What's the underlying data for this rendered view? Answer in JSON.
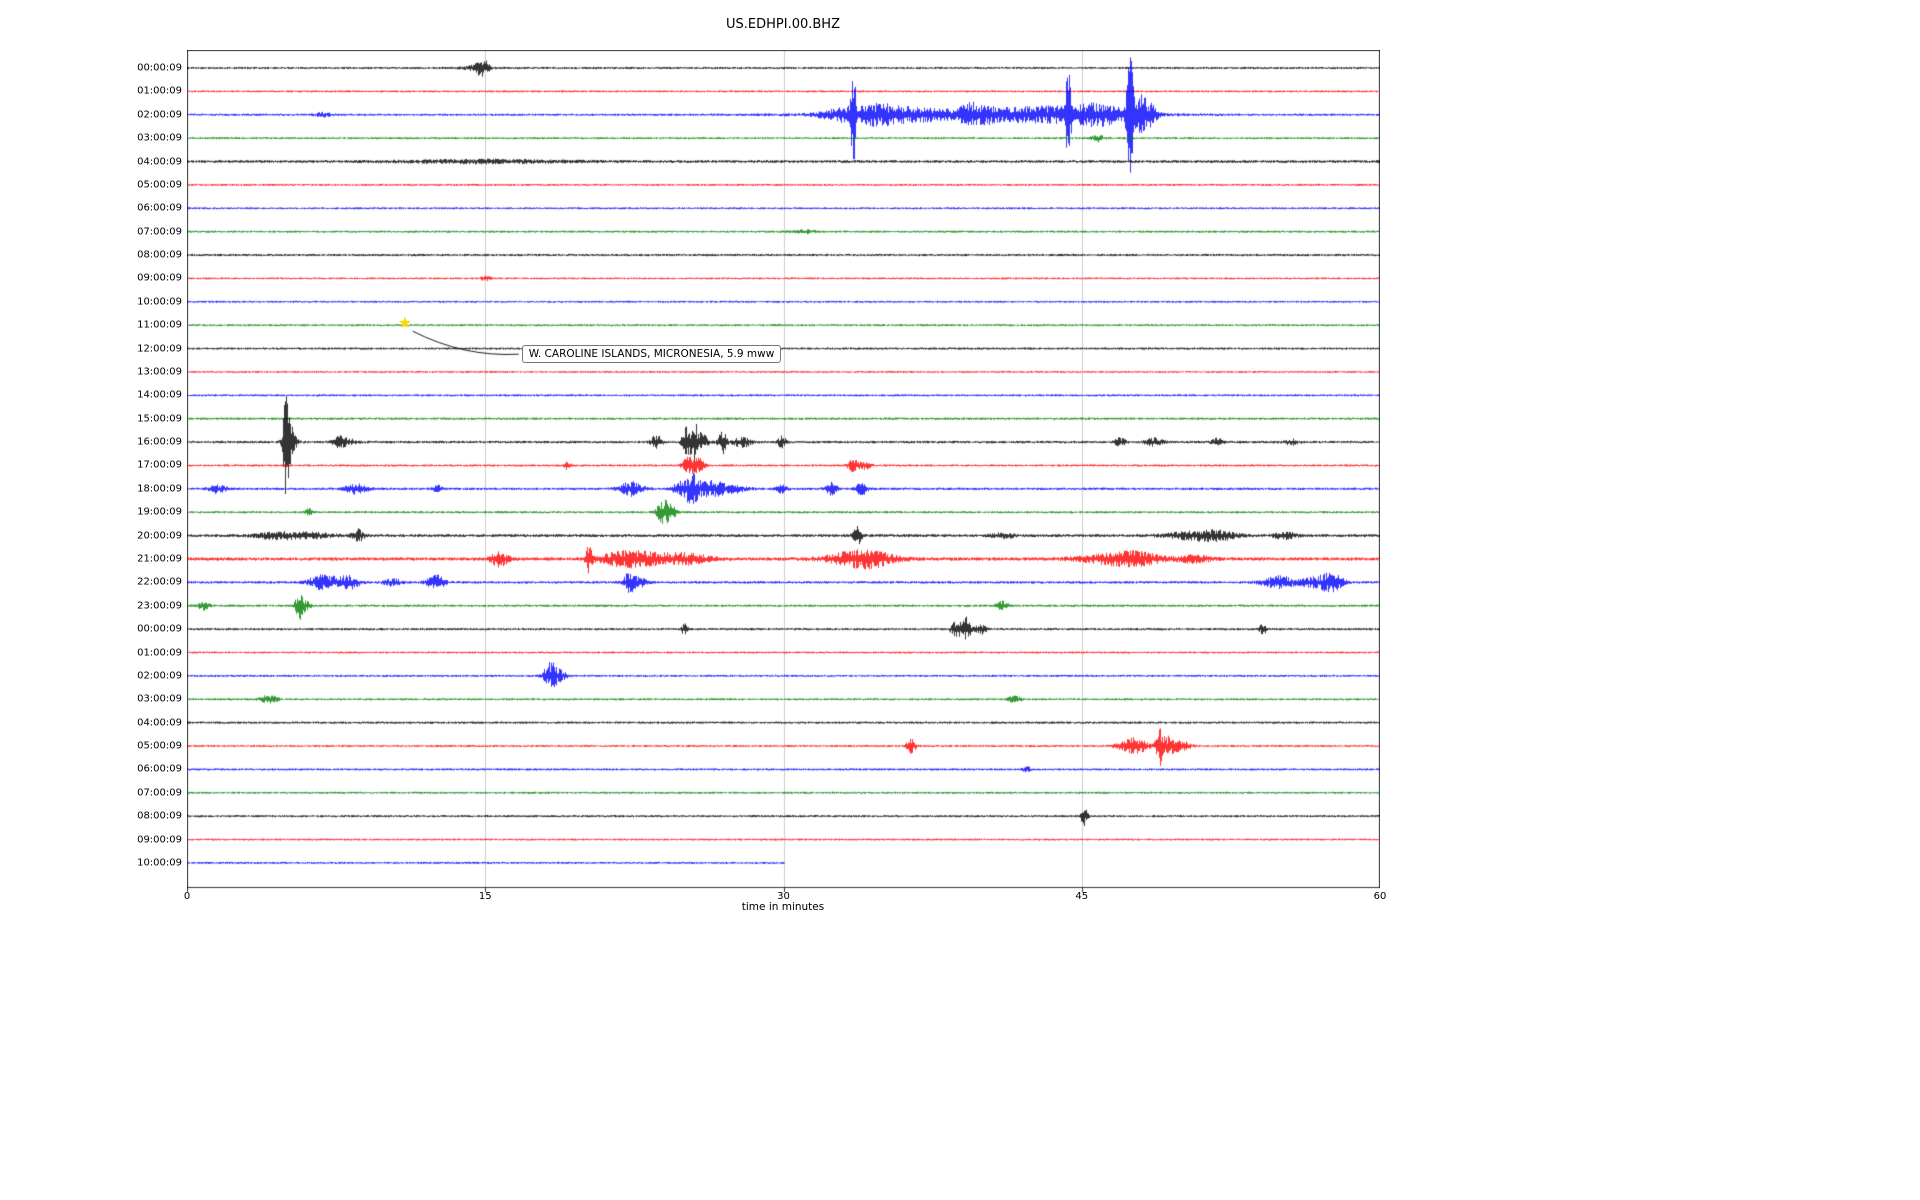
{
  "title": "US.EDHPI.00.BHZ",
  "xlabel": "time in minutes",
  "colors": {
    "black": "#000000",
    "red": "#ff0000",
    "blue": "#0000ff",
    "green": "#008000",
    "grid": "#cccccc",
    "frame": "#000000",
    "star": "#ffd700"
  },
  "annotation": {
    "text": "W. CAROLINE ISLANDS, MICRONESIA, 5.9 mww",
    "row_index": 11,
    "minute": 11
  },
  "chart_data": {
    "type": "line",
    "subtype": "helicorder-dayplot",
    "title": "US.EDHPI.00.BHZ",
    "xlabel": "time in minutes",
    "xlim": [
      0,
      60
    ],
    "x_ticks": [
      0,
      15,
      30,
      45,
      60
    ],
    "grid": "vertical-interior",
    "color_cycle": [
      "black",
      "red",
      "blue",
      "green"
    ],
    "rows": [
      {
        "label": "00:00:09",
        "color": "black",
        "base": 1.15,
        "end": 60,
        "events": [
          [
            14.5,
            2.5,
            0.4
          ],
          [
            14.75,
            6,
            0.15
          ],
          [
            15.05,
            5,
            0.12
          ]
        ]
      },
      {
        "label": "01:00:09",
        "color": "red",
        "base": 1.0,
        "end": 60,
        "events": []
      },
      {
        "label": "02:00:09",
        "color": "blue",
        "base": 1.15,
        "end": 60,
        "events": [
          [
            6.8,
            2,
            0.3
          ],
          [
            33.0,
            6,
            0.8
          ],
          [
            33.5,
            42,
            0.1
          ],
          [
            34.6,
            7,
            0.5
          ],
          [
            35.5,
            4,
            0.8
          ],
          [
            37,
            3.5,
            1.2
          ],
          [
            39.5,
            7,
            0.5
          ],
          [
            40,
            3,
            5
          ],
          [
            40.5,
            4,
            0.8
          ],
          [
            42,
            4,
            0.8
          ],
          [
            43.5,
            5,
            0.6
          ],
          [
            44.3,
            36,
            0.1
          ],
          [
            45,
            6,
            0.8
          ],
          [
            46.2,
            7,
            0.8
          ],
          [
            47.4,
            55,
            0.12
          ],
          [
            47.9,
            16,
            0.3
          ],
          [
            48.4,
            8,
            0.3
          ]
        ]
      },
      {
        "label": "03:00:09",
        "color": "green",
        "base": 1.1,
        "end": 60,
        "events": [
          [
            45.8,
            3.5,
            0.2
          ]
        ]
      },
      {
        "label": "04:00:09",
        "color": "black",
        "base": 1.45,
        "end": 60,
        "events": [
          [
            15,
            1.5,
            3
          ]
        ]
      },
      {
        "label": "05:00:09",
        "color": "red",
        "base": 1.05,
        "end": 60,
        "events": []
      },
      {
        "label": "06:00:09",
        "color": "blue",
        "base": 1.05,
        "end": 60,
        "events": []
      },
      {
        "label": "07:00:09",
        "color": "green",
        "base": 1.1,
        "end": 60,
        "events": [
          [
            31,
            1.5,
            0.5
          ]
        ]
      },
      {
        "label": "08:00:09",
        "color": "black",
        "base": 1.2,
        "end": 60,
        "events": []
      },
      {
        "label": "09:00:09",
        "color": "red",
        "base": 1.0,
        "end": 60,
        "events": [
          [
            15,
            2.5,
            0.15
          ]
        ]
      },
      {
        "label": "10:00:09",
        "color": "blue",
        "base": 1.05,
        "end": 60,
        "events": []
      },
      {
        "label": "11:00:09",
        "color": "green",
        "base": 1.1,
        "end": 60,
        "events": []
      },
      {
        "label": "12:00:09",
        "color": "black",
        "base": 1.15,
        "end": 60,
        "events": []
      },
      {
        "label": "13:00:09",
        "color": "red",
        "base": 1.0,
        "end": 60,
        "events": []
      },
      {
        "label": "14:00:09",
        "color": "blue",
        "base": 1.1,
        "end": 60,
        "events": []
      },
      {
        "label": "15:00:09",
        "color": "green",
        "base": 1.2,
        "end": 60,
        "events": []
      },
      {
        "label": "16:00:09",
        "color": "black",
        "base": 1.3,
        "end": 60,
        "events": [
          [
            4.95,
            46,
            0.1
          ],
          [
            5.15,
            18,
            0.2
          ],
          [
            7.6,
            5,
            0.2
          ],
          [
            8.1,
            3,
            0.3
          ],
          [
            23.6,
            7,
            0.2
          ],
          [
            25.1,
            16,
            0.15
          ],
          [
            25.5,
            20,
            0.12
          ],
          [
            25.9,
            9,
            0.2
          ],
          [
            26.9,
            12,
            0.15
          ],
          [
            27.9,
            5,
            0.3
          ],
          [
            29.9,
            6,
            0.15
          ],
          [
            46.9,
            4,
            0.2
          ],
          [
            48.6,
            3.5,
            0.3
          ],
          [
            51.8,
            3.5,
            0.2
          ],
          [
            55.5,
            3,
            0.2
          ]
        ]
      },
      {
        "label": "17:00:09",
        "color": "red",
        "base": 1.1,
        "end": 60,
        "events": [
          [
            19.1,
            3.5,
            0.12
          ],
          [
            25.2,
            9,
            0.2
          ],
          [
            25.7,
            7,
            0.2
          ],
          [
            33.5,
            6,
            0.2
          ],
          [
            34.1,
            3.5,
            0.2
          ]
        ]
      },
      {
        "label": "18:00:09",
        "color": "blue",
        "base": 1.25,
        "end": 60,
        "events": [
          [
            1.5,
            4,
            0.3
          ],
          [
            8.5,
            5,
            0.4
          ],
          [
            12.6,
            3.5,
            0.2
          ],
          [
            22.3,
            7,
            0.4
          ],
          [
            24.9,
            9,
            0.3
          ],
          [
            25.4,
            11,
            0.2
          ],
          [
            26.1,
            7,
            0.5
          ],
          [
            27.2,
            5,
            0.6
          ],
          [
            29.9,
            4,
            0.2
          ],
          [
            32.4,
            6,
            0.2
          ],
          [
            33.9,
            6,
            0.2
          ]
        ]
      },
      {
        "label": "19:00:09",
        "color": "green",
        "base": 1.15,
        "end": 60,
        "events": [
          [
            6.1,
            3.5,
            0.12
          ],
          [
            23.9,
            11,
            0.2
          ],
          [
            24.3,
            7,
            0.2
          ]
        ]
      },
      {
        "label": "20:00:09",
        "color": "black",
        "base": 1.5,
        "end": 60,
        "events": [
          [
            4.5,
            3,
            0.8
          ],
          [
            6.2,
            2.5,
            0.8
          ],
          [
            8.6,
            6,
            0.2
          ],
          [
            33.7,
            9,
            0.15
          ],
          [
            41,
            2.5,
            0.4
          ],
          [
            50.7,
            4,
            1.0
          ],
          [
            52,
            3,
            0.6
          ],
          [
            55.2,
            3.5,
            0.4
          ]
        ]
      },
      {
        "label": "21:00:09",
        "color": "red",
        "base": 1.7,
        "end": 60,
        "events": [
          [
            15.7,
            7,
            0.3
          ],
          [
            20.2,
            13,
            0.12
          ],
          [
            21.8,
            5,
            0.8
          ],
          [
            23.2,
            5,
            1.2
          ],
          [
            25.2,
            4,
            0.8
          ],
          [
            33.6,
            7,
            1.0
          ],
          [
            34.8,
            4,
            0.8
          ],
          [
            46.6,
            5,
            1.2
          ],
          [
            48,
            4,
            0.8
          ],
          [
            50.6,
            3.5,
            0.6
          ]
        ]
      },
      {
        "label": "22:00:09",
        "color": "blue",
        "base": 1.3,
        "end": 60,
        "events": [
          [
            6.6,
            6,
            0.4
          ],
          [
            7.6,
            5,
            0.5
          ],
          [
            8.3,
            4,
            0.3
          ],
          [
            10.3,
            3.5,
            0.3
          ],
          [
            12.5,
            7,
            0.3
          ],
          [
            22.2,
            9,
            0.2
          ],
          [
            22.7,
            5,
            0.3
          ],
          [
            54.9,
            6,
            0.6
          ],
          [
            56.6,
            5,
            0.4
          ],
          [
            57.4,
            8,
            0.3
          ],
          [
            57.8,
            5,
            0.3
          ]
        ]
      },
      {
        "label": "23:00:09",
        "color": "green",
        "base": 1.2,
        "end": 60,
        "events": [
          [
            0.8,
            4,
            0.2
          ],
          [
            5.6,
            15,
            0.12
          ],
          [
            5.9,
            5,
            0.2
          ],
          [
            41,
            4,
            0.2
          ]
        ]
      },
      {
        "label": "00:00:09",
        "color": "black",
        "base": 1.2,
        "end": 60,
        "events": [
          [
            25,
            5,
            0.12
          ],
          [
            38.7,
            9,
            0.2
          ],
          [
            39.2,
            11,
            0.15
          ],
          [
            39.9,
            5,
            0.2
          ],
          [
            54.1,
            6,
            0.12
          ]
        ]
      },
      {
        "label": "01:00:09",
        "color": "red",
        "base": 1.0,
        "end": 60,
        "events": []
      },
      {
        "label": "02:00:09",
        "color": "blue",
        "base": 1.1,
        "end": 60,
        "events": [
          [
            18.2,
            11,
            0.2
          ],
          [
            18.6,
            7,
            0.3
          ]
        ]
      },
      {
        "label": "03:00:09",
        "color": "green",
        "base": 1.1,
        "end": 60,
        "events": [
          [
            4.1,
            4,
            0.3
          ],
          [
            41.6,
            3.5,
            0.2
          ]
        ]
      },
      {
        "label": "04:00:09",
        "color": "black",
        "base": 1.2,
        "end": 60,
        "events": []
      },
      {
        "label": "05:00:09",
        "color": "red",
        "base": 1.1,
        "end": 60,
        "events": [
          [
            36.4,
            8,
            0.15
          ],
          [
            47.6,
            8,
            0.5
          ],
          [
            48.9,
            17,
            0.12
          ],
          [
            49.3,
            9,
            0.3
          ],
          [
            50,
            5,
            0.3
          ]
        ]
      },
      {
        "label": "06:00:09",
        "color": "blue",
        "base": 1.1,
        "end": 60,
        "events": [
          [
            42.2,
            4,
            0.12
          ]
        ]
      },
      {
        "label": "07:00:09",
        "color": "green",
        "base": 1.1,
        "end": 60,
        "events": []
      },
      {
        "label": "08:00:09",
        "color": "black",
        "base": 1.15,
        "end": 60,
        "events": [
          [
            45.1,
            9,
            0.12
          ]
        ]
      },
      {
        "label": "09:00:09",
        "color": "red",
        "base": 1.0,
        "end": 60,
        "events": []
      },
      {
        "label": "10:00:09",
        "color": "blue",
        "base": 1.1,
        "end": 30,
        "events": []
      }
    ]
  }
}
